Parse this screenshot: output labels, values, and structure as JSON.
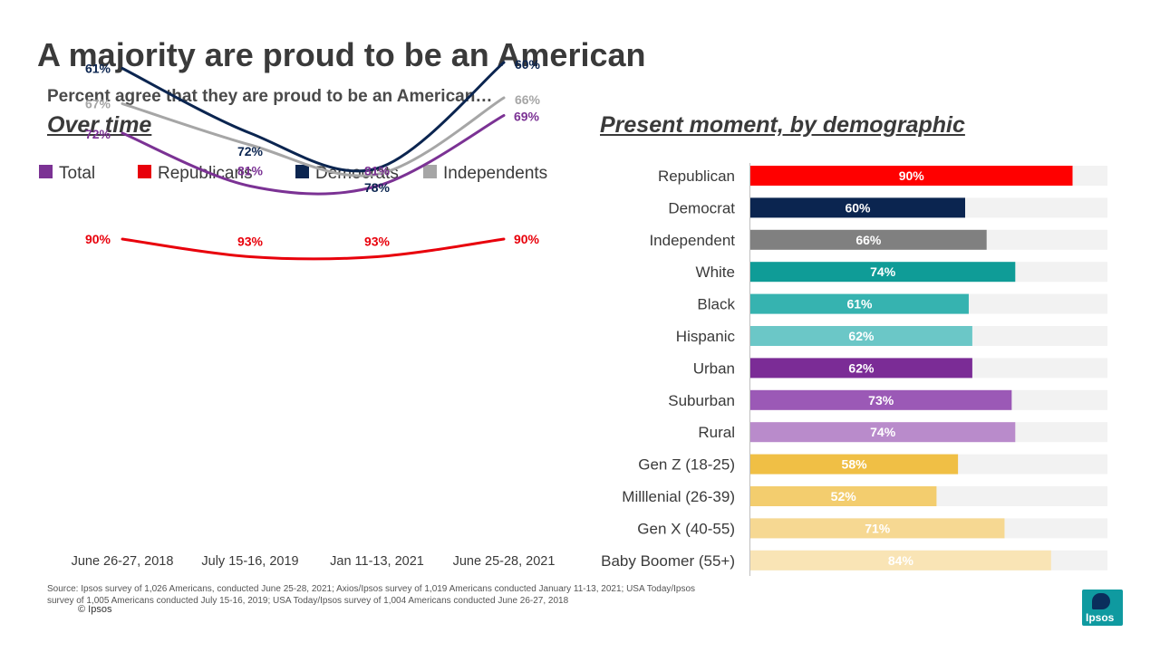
{
  "slide": {
    "title": "A majority are proud to be an American",
    "subtitle": "Percent agree that they are proud to be an American…",
    "left_heading": "Over time",
    "right_heading": "Present moment, by demographic",
    "source": "Source: Ipsos survey of 1,026 Americans, conducted June 25-28, 2021; Axios/Ipsos survey of 1,019 Americans conducted January 11-13, 2021; USA Today/Ipsos survey of 1,005 Americans conducted July 15-16, 2019; USA Today/Ipsos survey of 1,004 Americans conducted June 26-27, 2018",
    "copyright": "© Ipsos",
    "logo_text": "Ipsos"
  },
  "chart_data": [
    {
      "type": "line",
      "title": "Over time",
      "x": [
        "June 26-27, 2018",
        "July 15-16, 2019",
        "Jan 11-13, 2021",
        "June 25-28, 2021"
      ],
      "legend_position": "top",
      "series": [
        {
          "name": "Total",
          "color": "#7b3294",
          "values": [
            72,
            81,
            81,
            69
          ],
          "labels": [
            "72%",
            "81%",
            "81%",
            "69%"
          ]
        },
        {
          "name": "Republicans",
          "color": "#e8000b",
          "values": [
            90,
            93,
            93,
            90
          ],
          "labels": [
            "90%",
            "93%",
            "93%",
            "90%"
          ]
        },
        {
          "name": "Democrats",
          "color": "#0b2550",
          "values": [
            61,
            72,
            78,
            60
          ],
          "labels": [
            "61%",
            "72%",
            "78%",
            "60%"
          ]
        },
        {
          "name": "Independents",
          "color": "#a6a6a6",
          "values": [
            67,
            null,
            null,
            66
          ],
          "labels": [
            "67%",
            "",
            "",
            "66%"
          ]
        }
      ],
      "grid": false
    },
    {
      "type": "bar",
      "orientation": "horizontal",
      "title": "Present moment, by demographic",
      "xlim": [
        0,
        100
      ],
      "categories": [
        "Republican",
        "Democrat",
        "Independent",
        "White",
        "Black",
        "Hispanic",
        "Urban",
        "Suburban",
        "Rural",
        "Gen Z (18-25)",
        "Milllenial (26-39)",
        "Gen X (40-55)",
        "Baby Boomer (55+)"
      ],
      "values": [
        90,
        60,
        66,
        74,
        61,
        62,
        62,
        73,
        74,
        58,
        52,
        71,
        84
      ],
      "labels": [
        "90%",
        "60%",
        "66%",
        "74%",
        "61%",
        "62%",
        "62%",
        "73%",
        "74%",
        "58%",
        "52%",
        "71%",
        "84%"
      ],
      "colors": [
        "#ff0000",
        "#0b2550",
        "#808080",
        "#0f9c97",
        "#36b3b0",
        "#6bc7c7",
        "#7b2c96",
        "#9b59b6",
        "#b98bcb",
        "#f0bf45",
        "#f3cd6e",
        "#f6d892",
        "#f9e4b5"
      ],
      "background_color": "#f2f2f2",
      "grid": false
    }
  ]
}
